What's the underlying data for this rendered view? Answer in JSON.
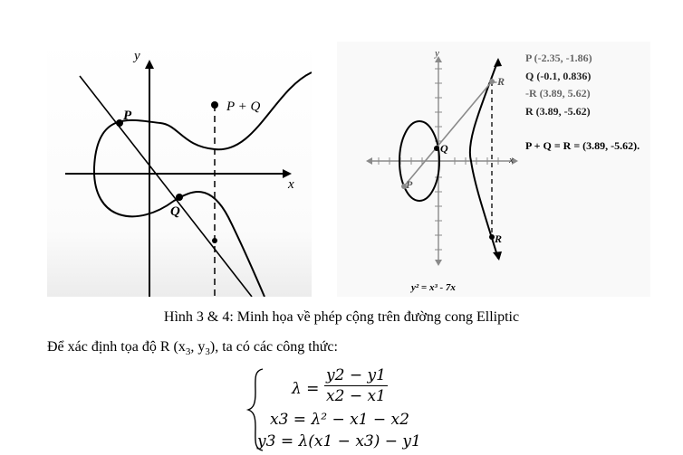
{
  "figure_left": {
    "label_y": "y",
    "label_x": "x",
    "label_p": "P",
    "label_q": "Q",
    "label_pq": "P + Q"
  },
  "figure_right": {
    "axis_y": "y",
    "axis_x": "x",
    "pt_p": "P",
    "pt_q": "Q",
    "pt_negr": "-R",
    "pt_r": "R",
    "legend": {
      "p": "P (-2.35, -1.86)",
      "q": "Q (-0.1, 0.836)",
      "negr": "-R (3.89, 5.62)",
      "r": "R (3.89, -5.62)",
      "sum": "P + Q = R = (3.89, -5.62)."
    },
    "equation": "y² = x³ - 7x"
  },
  "caption": "Hình 3 & 4: Minh họa về phép cộng trên đường cong Elliptic",
  "paragraph": {
    "before": "Để xác định tọa độ R (x",
    "sub1": "3",
    "middle": ", y",
    "sub2": "3",
    "after": "), ta có các công thức:"
  },
  "formulas": {
    "lambda_lhs": "λ =",
    "lambda_num": "y2 − y1",
    "lambda_den": "x2 − x1",
    "x3": "x3 = λ² − x1 − x2",
    "y3": "y3 = λ(x1 − x3) − y1"
  },
  "colors": {
    "ink": "#000000",
    "grey_axis": "#8a8a8a"
  }
}
